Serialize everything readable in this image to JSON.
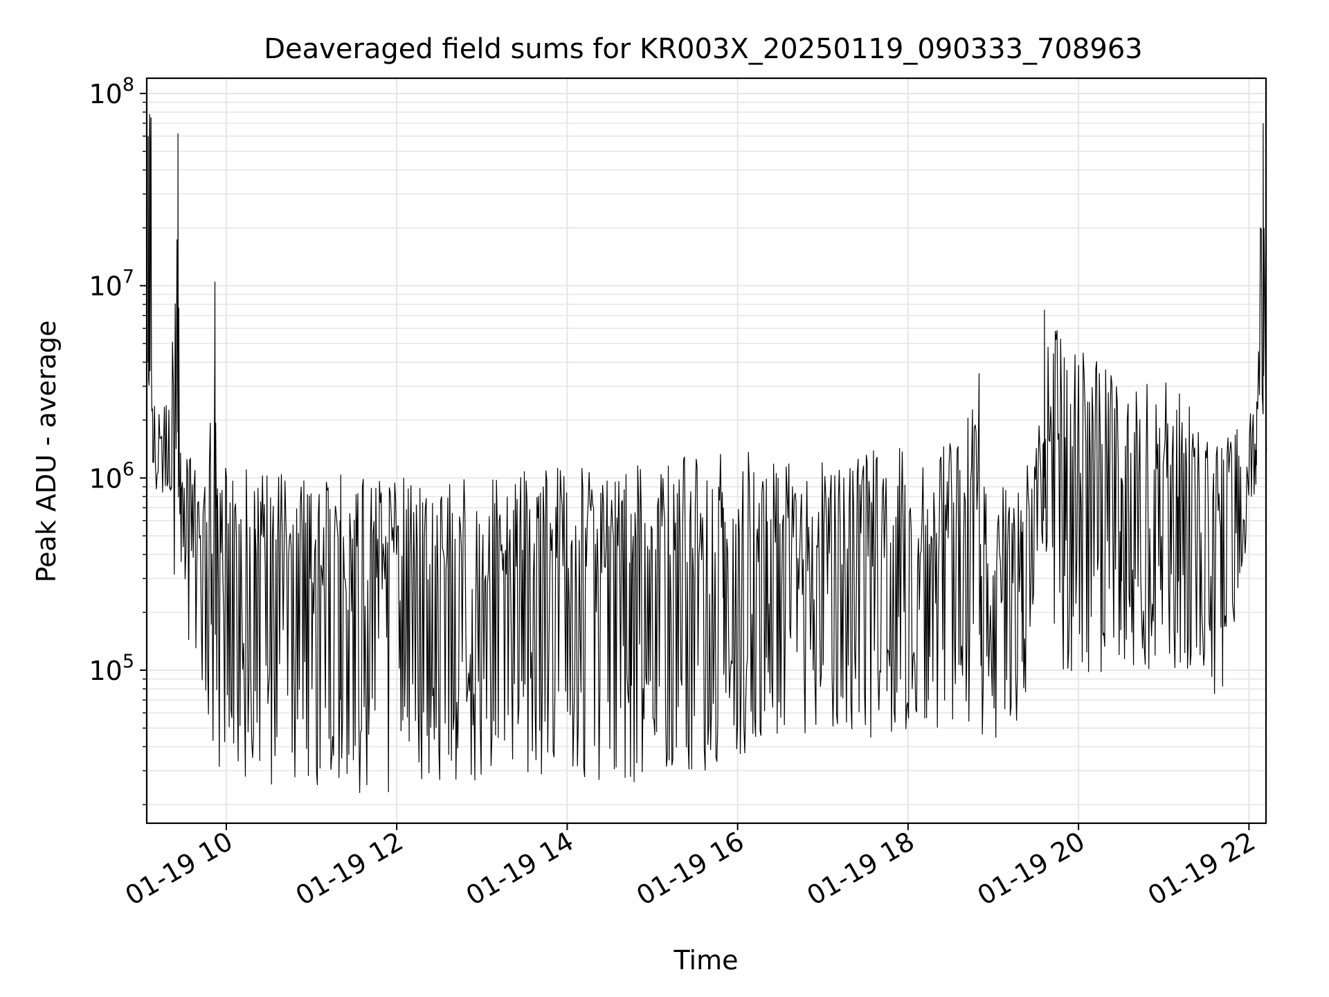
{
  "chart_data": {
    "type": "line",
    "title": "Deaveraged field sums for KR003X_20250119_090333_708963",
    "xlabel": "Time",
    "ylabel": "Peak ADU - average",
    "x_axis_type": "datetime",
    "xlim": [
      "2025-01-19T09:04",
      "2025-01-19T22:12"
    ],
    "xticks": [
      "2025-01-19T10:00",
      "2025-01-19T12:00",
      "2025-01-19T14:00",
      "2025-01-19T16:00",
      "2025-01-19T18:00",
      "2025-01-19T20:00",
      "2025-01-19T22:00"
    ],
    "xtick_labels": [
      "01-19 10",
      "01-19 12",
      "01-19 14",
      "01-19 16",
      "01-19 18",
      "01-19 20",
      "01-19 22"
    ],
    "yscale": "log",
    "ylim": [
      16000,
      120000000
    ],
    "ytick_values": [
      100000,
      1000000,
      10000000,
      100000000
    ],
    "ytick_labels": [
      {
        "base": "10",
        "exp": "5"
      },
      {
        "base": "10",
        "exp": "6"
      },
      {
        "base": "10",
        "exp": "7"
      },
      {
        "base": "10",
        "exp": "8"
      }
    ],
    "grid": true,
    "line_color": "#000000",
    "grid_color": "#e6e6e6",
    "series": [
      {
        "x": [
          "2025-01-19T09:05",
          "2025-01-19T09:06",
          "2025-01-19T09:07",
          "2025-01-19T09:08",
          "2025-01-19T09:20",
          "2025-01-19T09:26",
          "2025-01-19T09:27",
          "2025-01-19T09:28",
          "2025-01-19T09:45",
          "2025-01-19T09:52",
          "2025-01-19T09:53",
          "2025-01-19T10:20",
          "2025-01-19T11:20",
          "2025-01-19T12:25",
          "2025-01-19T13:30",
          "2025-01-19T14:45",
          "2025-01-19T15:50",
          "2025-01-19T16:20",
          "2025-01-19T17:00",
          "2025-01-19T17:45",
          "2025-01-19T18:15",
          "2025-01-19T18:50",
          "2025-01-19T18:51",
          "2025-01-19T19:20",
          "2025-01-19T19:35",
          "2025-01-19T19:36",
          "2025-01-19T19:50",
          "2025-01-19T20:30",
          "2025-01-19T21:10",
          "2025-01-19T21:40",
          "2025-01-19T22:05",
          "2025-01-19T22:10",
          "2025-01-19T22:12"
        ],
        "y": [
          60000000,
          78000000,
          75000000,
          2300000,
          1100000,
          62000000,
          900000,
          600000,
          500000,
          10500000,
          700000,
          700000,
          600000,
          500000,
          550000,
          650000,
          700000,
          650000,
          550000,
          450000,
          350000,
          3500000,
          300000,
          200000,
          1500000,
          7500000,
          1100000,
          1000000,
          800000,
          550000,
          1400000,
          70000000,
          2500000
        ],
        "y_min": [
          900000,
          950000,
          950000,
          900000,
          600000,
          120000,
          400000,
          200000,
          60000,
          25000,
          25000,
          25000,
          22000,
          24000,
          28000,
          26000,
          30000,
          40000,
          40000,
          38000,
          45000,
          40000,
          42000,
          45000,
          300000,
          250000,
          90000,
          100000,
          100000,
          65000,
          800000,
          900000,
          900000
        ],
        "y_max": [
          65000000,
          80000000,
          78000000,
          2400000,
          2400000,
          65000000,
          2000000,
          1500000,
          1300000,
          10500000,
          1150000,
          1100000,
          1050000,
          1000000,
          1100000,
          1250000,
          1400000,
          1400000,
          1250000,
          1800000,
          1100000,
          3500000,
          900000,
          900000,
          3000000,
          7500000,
          5500000,
          3500000,
          3600000,
          1500000,
          2800000,
          75000000,
          3500000
        ]
      }
    ]
  }
}
